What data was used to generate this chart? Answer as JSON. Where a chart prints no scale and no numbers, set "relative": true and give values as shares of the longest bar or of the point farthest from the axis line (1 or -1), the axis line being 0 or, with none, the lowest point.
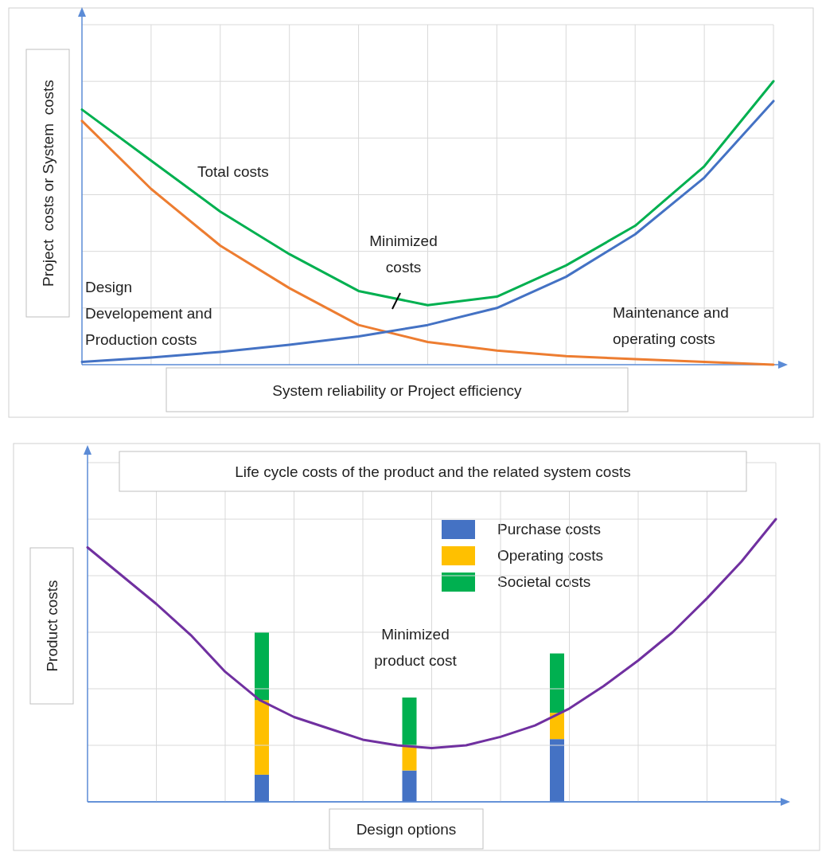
{
  "chart_data": [
    {
      "type": "line",
      "relative": true,
      "xlabel": "System reliability or Project efficiency",
      "ylabel": "Project  costs or System  costs",
      "categories": [
        null,
        null,
        null,
        null,
        null,
        null,
        null,
        null,
        null,
        null,
        null
      ],
      "grid": true,
      "legend": false,
      "marker": "none",
      "line_style": "solid",
      "series": [
        {
          "color": "#00b050",
          "values": [
            0.9,
            0.72,
            0.54,
            0.39,
            0.26,
            0.21,
            0.24,
            0.35,
            0.49,
            0.7,
            1.0
          ]
        },
        {
          "color": "#ed7d31",
          "values": [
            0.86,
            0.62,
            0.42,
            0.27,
            0.14,
            0.08,
            0.05,
            0.03,
            0.02,
            0.01,
            0.0
          ]
        },
        {
          "color": "#4472c4",
          "values": [
            0.01,
            0.025,
            0.045,
            0.07,
            0.1,
            0.14,
            0.2,
            0.31,
            0.46,
            0.66,
            0.93
          ]
        }
      ],
      "annotations": [
        "Total costs",
        "Minimized costs",
        "Design Developement and Production costs",
        "Maintenance and operating costs"
      ]
    },
    {
      "type": "line",
      "relative": true,
      "title": "Life cycle costs of the product and the related system costs",
      "xlabel": "Design options",
      "ylabel": "Product costs",
      "categories": [
        null,
        null,
        null,
        null,
        null,
        null,
        null,
        null,
        null,
        null,
        null,
        null,
        null,
        null,
        null,
        null,
        null,
        null,
        null,
        null,
        null
      ],
      "grid": true,
      "legend": false,
      "marker": "none",
      "line_style": "solid",
      "series": [
        {
          "color": "#7030a0",
          "values": [
            0.9,
            0.8,
            0.7,
            0.59,
            0.46,
            0.36,
            0.3,
            0.26,
            0.22,
            0.2,
            0.19,
            0.2,
            0.23,
            0.27,
            0.33,
            0.41,
            0.5,
            0.6,
            0.72,
            0.85,
            1.0
          ]
        }
      ],
      "annotations": [
        "Minimized product cost"
      ]
    },
    {
      "type": "bar",
      "relative": true,
      "categories": [
        null,
        null,
        null
      ],
      "stacked": true,
      "legend": "top right",
      "series": [
        {
          "name": "Purchase costs",
          "color": "#4472c4",
          "values": [
            0.16,
            0.185,
            0.37
          ]
        },
        {
          "name": "Operating costs",
          "color": "#ffc000",
          "values": [
            0.44,
            0.14,
            0.155
          ]
        },
        {
          "name": "Societal costs",
          "color": "#00b050",
          "values": [
            0.4,
            0.29,
            0.35
          ]
        }
      ]
    }
  ]
}
